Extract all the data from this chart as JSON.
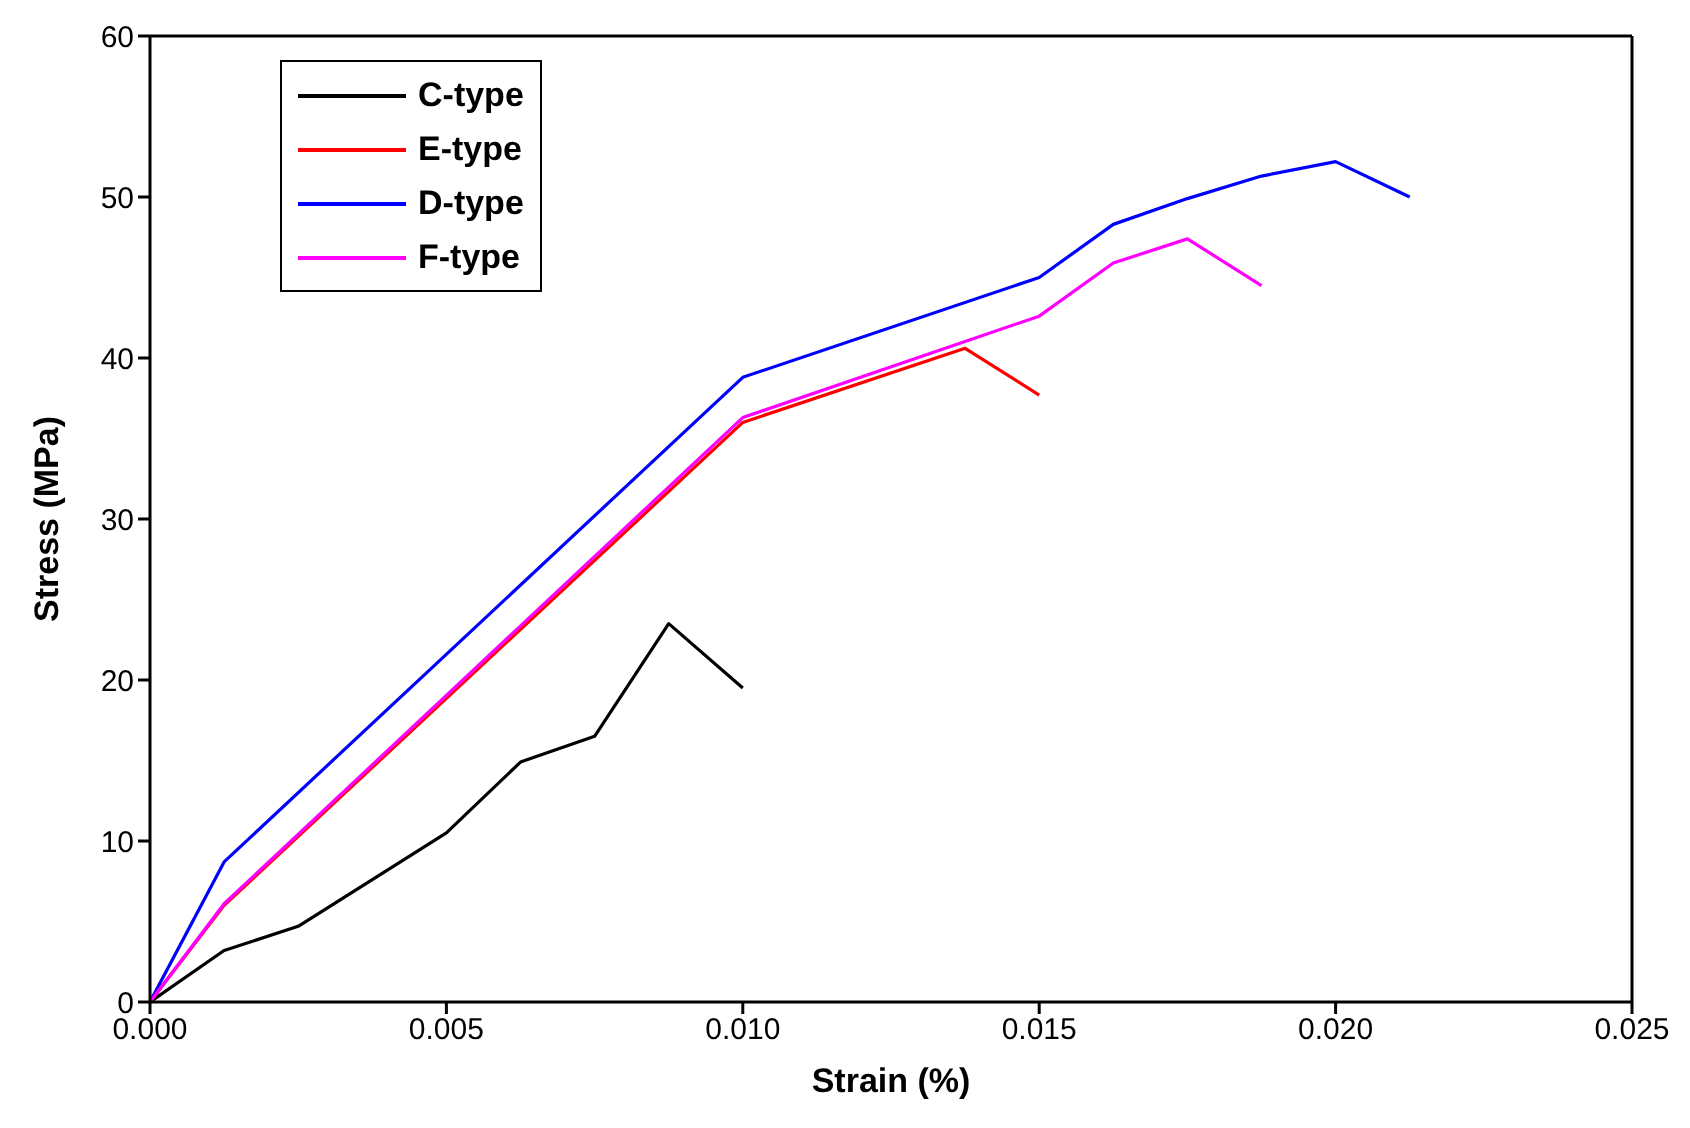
{
  "chart_data": {
    "type": "line",
    "xlabel": "Strain (%)",
    "ylabel": "Stress (MPa)",
    "xlim": [
      0,
      0.025
    ],
    "xticks": [
      {
        "value": 0,
        "label": "0.000"
      },
      {
        "value": 0.005,
        "label": "0.005"
      },
      {
        "value": 0.01,
        "label": "0.010"
      },
      {
        "value": 0.015,
        "label": "0.015"
      },
      {
        "value": 0.02,
        "label": "0.020"
      },
      {
        "value": 0.025,
        "label": "0.025"
      }
    ],
    "ylim": [
      0,
      60
    ],
    "yticks": [
      0,
      10,
      20,
      30,
      40,
      50,
      60
    ],
    "grid": false,
    "legend": "top left",
    "marker": "none",
    "line_style": "solid",
    "series": [
      {
        "name": "C-type",
        "color": "#000000",
        "x": [
          0,
          0.00125,
          0.0025,
          0.005,
          0.00625,
          0.0075,
          0.00875,
          0.01
        ],
        "values": [
          0,
          3.2,
          4.7,
          10.5,
          14.9,
          16.5,
          23.5,
          19.5
        ]
      },
      {
        "name": "E-type",
        "color": "#ff0000",
        "x": [
          0,
          0.00125,
          0.01,
          0.01375,
          0.015
        ],
        "values": [
          0,
          6,
          36,
          40.6,
          37.7
        ]
      },
      {
        "name": "D-type",
        "color": "#0000ff",
        "x": [
          0,
          0.00125,
          0.01,
          0.015,
          0.01625,
          0.0175,
          0.01875,
          0.02,
          0.02125
        ],
        "values": [
          0,
          8.7,
          38.8,
          45,
          48.3,
          49.9,
          51.3,
          52.2,
          50
        ]
      },
      {
        "name": "F-type",
        "color": "#ff00ff",
        "x": [
          0,
          0.00125,
          0.01,
          0.015,
          0.01625,
          0.0175,
          0.01875
        ],
        "values": [
          0,
          6.1,
          36.3,
          42.6,
          45.9,
          47.4,
          44.5
        ]
      }
    ]
  }
}
